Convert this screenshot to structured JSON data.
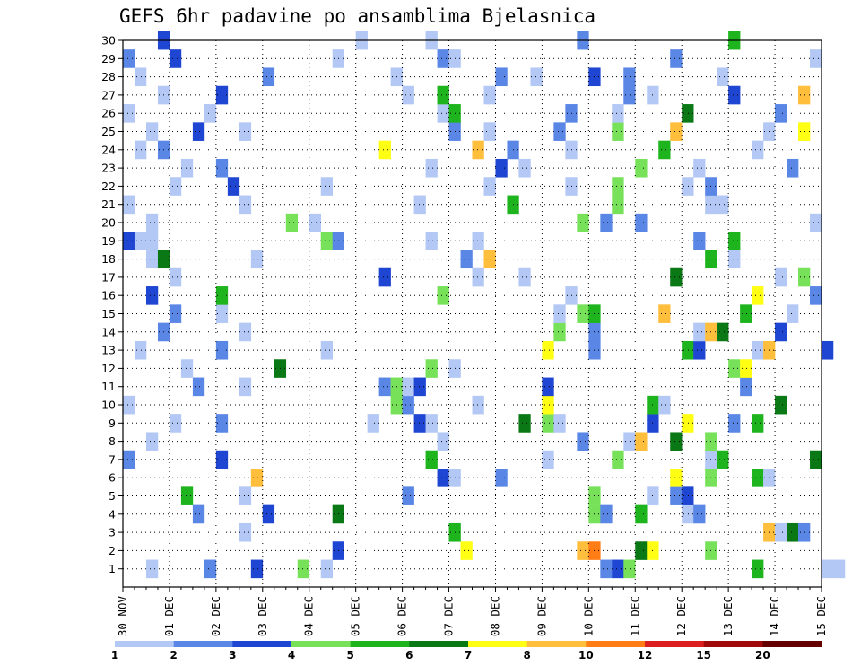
{
  "chart_data": {
    "type": "heatmap",
    "title": "GEFS 6hr padavine po ansamblima Bjelasnica",
    "xlabel": "",
    "ylabel": "",
    "x_ticks": [
      "30 NOV",
      "01 DEC",
      "02 DEC",
      "03 DEC",
      "04 DEC",
      "05 DEC",
      "06 DEC",
      "07 DEC",
      "08 DEC",
      "09 DEC",
      "10 DEC",
      "11 DEC",
      "12 DEC",
      "13 DEC",
      "14 DEC",
      "15 DEC"
    ],
    "x_range": [
      "30 NOV 00Z",
      "15 DEC 00Z"
    ],
    "x_step_hours": 6,
    "y_ticks": [
      "1",
      "2",
      "3",
      "4",
      "5",
      "6",
      "7",
      "8",
      "9",
      "10",
      "11",
      "12",
      "13",
      "14",
      "15",
      "16",
      "17",
      "18",
      "19",
      "20",
      "21",
      "22",
      "23",
      "24",
      "25",
      "26",
      "27",
      "28",
      "29",
      "30"
    ],
    "y_range": [
      0,
      30
    ],
    "grid": true,
    "legend_position": "bottom",
    "colorbar": {
      "labels": [
        "1",
        "2",
        "3",
        "4",
        "5",
        "6",
        "7",
        "8",
        "10",
        "12",
        "15",
        "20"
      ],
      "colors": [
        "#b4c8f5",
        "#5a87e6",
        "#1e46d2",
        "#78e15a",
        "#1eb41e",
        "#0a7814",
        "#ffff14",
        "#ffbe3c",
        "#ff7d14",
        "#dc1e1e",
        "#a00a0a",
        "#640000"
      ],
      "units": "mm"
    },
    "cells": [
      [
        1,
        2,
        "a"
      ],
      [
        1,
        7,
        "b"
      ],
      [
        1,
        11,
        "c"
      ],
      [
        1,
        15,
        "d"
      ],
      [
        1,
        17,
        "a"
      ],
      [
        1,
        41,
        "b"
      ],
      [
        1,
        42,
        "c"
      ],
      [
        1,
        43,
        "d"
      ],
      [
        1,
        54,
        "e"
      ],
      [
        1,
        60,
        "a"
      ],
      [
        1,
        61,
        "a"
      ],
      [
        2,
        18,
        "c"
      ],
      [
        2,
        29,
        "g"
      ],
      [
        2,
        39,
        "h"
      ],
      [
        2,
        40,
        "i"
      ],
      [
        2,
        44,
        "f"
      ],
      [
        2,
        45,
        "g"
      ],
      [
        2,
        50,
        "d"
      ],
      [
        3,
        10,
        "a"
      ],
      [
        3,
        28,
        "e"
      ],
      [
        3,
        55,
        "h"
      ],
      [
        3,
        56,
        "a"
      ],
      [
        3,
        57,
        "f"
      ],
      [
        3,
        58,
        "b"
      ],
      [
        4,
        6,
        "b"
      ],
      [
        4,
        12,
        "c"
      ],
      [
        4,
        18,
        "f"
      ],
      [
        4,
        40,
        "d"
      ],
      [
        4,
        41,
        "b"
      ],
      [
        4,
        44,
        "e"
      ],
      [
        4,
        48,
        "a"
      ],
      [
        4,
        49,
        "b"
      ],
      [
        5,
        5,
        "e"
      ],
      [
        5,
        10,
        "a"
      ],
      [
        5,
        24,
        "b"
      ],
      [
        5,
        40,
        "d"
      ],
      [
        5,
        45,
        "a"
      ],
      [
        5,
        47,
        "b"
      ],
      [
        5,
        48,
        "c"
      ],
      [
        6,
        11,
        "h"
      ],
      [
        6,
        27,
        "c"
      ],
      [
        6,
        28,
        "a"
      ],
      [
        6,
        32,
        "b"
      ],
      [
        6,
        47,
        "g"
      ],
      [
        6,
        50,
        "d"
      ],
      [
        6,
        54,
        "e"
      ],
      [
        6,
        55,
        "a"
      ],
      [
        7,
        0,
        "b"
      ],
      [
        7,
        8,
        "c"
      ],
      [
        7,
        26,
        "e"
      ],
      [
        7,
        36,
        "a"
      ],
      [
        7,
        42,
        "d"
      ],
      [
        7,
        50,
        "a"
      ],
      [
        7,
        51,
        "e"
      ],
      [
        7,
        59,
        "f"
      ],
      [
        8,
        2,
        "a"
      ],
      [
        8,
        27,
        "a"
      ],
      [
        8,
        39,
        "b"
      ],
      [
        8,
        43,
        "a"
      ],
      [
        8,
        44,
        "h"
      ],
      [
        8,
        47,
        "f"
      ],
      [
        8,
        50,
        "d"
      ],
      [
        9,
        4,
        "a"
      ],
      [
        9,
        8,
        "b"
      ],
      [
        9,
        21,
        "a"
      ],
      [
        9,
        25,
        "c"
      ],
      [
        9,
        26,
        "a"
      ],
      [
        9,
        34,
        "f"
      ],
      [
        9,
        36,
        "d"
      ],
      [
        9,
        37,
        "a"
      ],
      [
        9,
        45,
        "c"
      ],
      [
        9,
        48,
        "g"
      ],
      [
        9,
        52,
        "b"
      ],
      [
        9,
        54,
        "e"
      ],
      [
        10,
        0,
        "a"
      ],
      [
        10,
        23,
        "d"
      ],
      [
        10,
        24,
        "b"
      ],
      [
        10,
        30,
        "a"
      ],
      [
        10,
        36,
        "g"
      ],
      [
        10,
        45,
        "e"
      ],
      [
        10,
        46,
        "a"
      ],
      [
        10,
        56,
        "f"
      ],
      [
        11,
        6,
        "b"
      ],
      [
        11,
        10,
        "a"
      ],
      [
        11,
        22,
        "b"
      ],
      [
        11,
        23,
        "d"
      ],
      [
        11,
        24,
        "a"
      ],
      [
        11,
        25,
        "c"
      ],
      [
        11,
        36,
        "c"
      ],
      [
        11,
        53,
        "b"
      ],
      [
        12,
        5,
        "a"
      ],
      [
        12,
        13,
        "f"
      ],
      [
        12,
        26,
        "d"
      ],
      [
        12,
        28,
        "a"
      ],
      [
        12,
        52,
        "d"
      ],
      [
        12,
        53,
        "g"
      ],
      [
        13,
        1,
        "a"
      ],
      [
        13,
        8,
        "b"
      ],
      [
        13,
        17,
        "a"
      ],
      [
        13,
        36,
        "g"
      ],
      [
        13,
        40,
        "b"
      ],
      [
        13,
        48,
        "e"
      ],
      [
        13,
        49,
        "c"
      ],
      [
        13,
        54,
        "a"
      ],
      [
        13,
        55,
        "h"
      ],
      [
        13,
        60,
        "c"
      ],
      [
        14,
        3,
        "b"
      ],
      [
        14,
        10,
        "a"
      ],
      [
        14,
        37,
        "d"
      ],
      [
        14,
        40,
        "b"
      ],
      [
        14,
        49,
        "a"
      ],
      [
        14,
        50,
        "h"
      ],
      [
        14,
        51,
        "f"
      ],
      [
        14,
        56,
        "c"
      ],
      [
        15,
        4,
        "b"
      ],
      [
        15,
        8,
        "a"
      ],
      [
        15,
        37,
        "a"
      ],
      [
        15,
        39,
        "d"
      ],
      [
        15,
        40,
        "e"
      ],
      [
        15,
        46,
        "h"
      ],
      [
        15,
        53,
        "e"
      ],
      [
        15,
        57,
        "a"
      ],
      [
        16,
        2,
        "c"
      ],
      [
        16,
        8,
        "e"
      ],
      [
        16,
        27,
        "d"
      ],
      [
        16,
        38,
        "a"
      ],
      [
        16,
        54,
        "g"
      ],
      [
        16,
        59,
        "b"
      ],
      [
        17,
        4,
        "a"
      ],
      [
        17,
        22,
        "c"
      ],
      [
        17,
        30,
        "a"
      ],
      [
        17,
        34,
        "a"
      ],
      [
        17,
        47,
        "f"
      ],
      [
        17,
        56,
        "a"
      ],
      [
        17,
        58,
        "d"
      ],
      [
        18,
        2,
        "a"
      ],
      [
        18,
        3,
        "f"
      ],
      [
        18,
        11,
        "a"
      ],
      [
        18,
        29,
        "b"
      ],
      [
        18,
        31,
        "h"
      ],
      [
        18,
        50,
        "e"
      ],
      [
        18,
        52,
        "a"
      ],
      [
        19,
        0,
        "c"
      ],
      [
        19,
        1,
        "a"
      ],
      [
        19,
        2,
        "a"
      ],
      [
        19,
        17,
        "d"
      ],
      [
        19,
        18,
        "b"
      ],
      [
        19,
        26,
        "a"
      ],
      [
        19,
        30,
        "a"
      ],
      [
        19,
        49,
        "b"
      ],
      [
        19,
        52,
        "e"
      ],
      [
        20,
        2,
        "a"
      ],
      [
        20,
        14,
        "d"
      ],
      [
        20,
        16,
        "a"
      ],
      [
        20,
        39,
        "d"
      ],
      [
        20,
        41,
        "b"
      ],
      [
        20,
        44,
        "b"
      ],
      [
        20,
        59,
        "a"
      ],
      [
        21,
        0,
        "a"
      ],
      [
        21,
        10,
        "a"
      ],
      [
        21,
        25,
        "a"
      ],
      [
        21,
        33,
        "e"
      ],
      [
        21,
        42,
        "d"
      ],
      [
        21,
        50,
        "a"
      ],
      [
        21,
        51,
        "a"
      ],
      [
        22,
        4,
        "a"
      ],
      [
        22,
        9,
        "c"
      ],
      [
        22,
        17,
        "a"
      ],
      [
        22,
        31,
        "a"
      ],
      [
        22,
        38,
        "a"
      ],
      [
        22,
        42,
        "d"
      ],
      [
        22,
        48,
        "a"
      ],
      [
        22,
        50,
        "b"
      ],
      [
        23,
        5,
        "a"
      ],
      [
        23,
        8,
        "b"
      ],
      [
        23,
        26,
        "a"
      ],
      [
        23,
        32,
        "c"
      ],
      [
        23,
        34,
        "a"
      ],
      [
        23,
        44,
        "d"
      ],
      [
        23,
        49,
        "a"
      ],
      [
        23,
        57,
        "b"
      ],
      [
        24,
        1,
        "a"
      ],
      [
        24,
        3,
        "b"
      ],
      [
        24,
        22,
        "g"
      ],
      [
        24,
        30,
        "h"
      ],
      [
        24,
        33,
        "b"
      ],
      [
        24,
        38,
        "a"
      ],
      [
        24,
        46,
        "e"
      ],
      [
        24,
        54,
        "a"
      ],
      [
        25,
        2,
        "a"
      ],
      [
        25,
        6,
        "c"
      ],
      [
        25,
        10,
        "a"
      ],
      [
        25,
        28,
        "b"
      ],
      [
        25,
        31,
        "a"
      ],
      [
        25,
        37,
        "b"
      ],
      [
        25,
        42,
        "d"
      ],
      [
        25,
        47,
        "h"
      ],
      [
        25,
        55,
        "a"
      ],
      [
        25,
        58,
        "g"
      ],
      [
        26,
        0,
        "a"
      ],
      [
        26,
        7,
        "a"
      ],
      [
        26,
        27,
        "a"
      ],
      [
        26,
        28,
        "e"
      ],
      [
        26,
        38,
        "b"
      ],
      [
        26,
        42,
        "a"
      ],
      [
        26,
        48,
        "f"
      ],
      [
        26,
        56,
        "b"
      ],
      [
        27,
        3,
        "a"
      ],
      [
        27,
        8,
        "c"
      ],
      [
        27,
        24,
        "a"
      ],
      [
        27,
        27,
        "e"
      ],
      [
        27,
        31,
        "a"
      ],
      [
        27,
        43,
        "b"
      ],
      [
        27,
        45,
        "a"
      ],
      [
        27,
        52,
        "c"
      ],
      [
        27,
        58,
        "h"
      ],
      [
        28,
        1,
        "a"
      ],
      [
        28,
        12,
        "b"
      ],
      [
        28,
        23,
        "a"
      ],
      [
        28,
        32,
        "b"
      ],
      [
        28,
        35,
        "a"
      ],
      [
        28,
        40,
        "c"
      ],
      [
        28,
        43,
        "b"
      ],
      [
        28,
        51,
        "a"
      ],
      [
        29,
        0,
        "b"
      ],
      [
        29,
        4,
        "c"
      ],
      [
        29,
        18,
        "a"
      ],
      [
        29,
        27,
        "b"
      ],
      [
        29,
        28,
        "a"
      ],
      [
        29,
        47,
        "b"
      ],
      [
        29,
        59,
        "a"
      ],
      [
        30,
        3,
        "c"
      ],
      [
        30,
        20,
        "a"
      ],
      [
        30,
        26,
        "a"
      ],
      [
        30,
        39,
        "b"
      ],
      [
        30,
        52,
        "e"
      ]
    ],
    "cell_classes": {
      "a": "1-2",
      "b": "2-3",
      "c": "3-4",
      "d": "4-5",
      "e": "5-6",
      "f": "6-7",
      "g": "7-8",
      "h": "8-10",
      "i": "10-12"
    }
  }
}
